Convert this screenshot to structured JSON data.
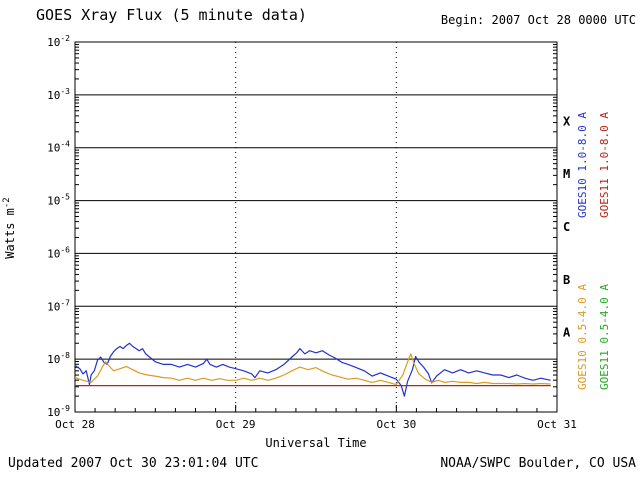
{
  "header": {
    "title": "GOES Xray Flux (5 minute data)",
    "begin": "Begin: 2007 Oct 28 0000 UTC"
  },
  "footer": {
    "updated": "Updated 2007 Oct 30 23:01:04 UTC",
    "source": "NOAA/SWPC Boulder, CO USA"
  },
  "chart_data": {
    "type": "line",
    "title": "GOES Xray Flux (5 minute data)",
    "xlabel": "Universal Time",
    "ylabel": {
      "base": "Watts m",
      "sup": "-2"
    },
    "x_axis": {
      "unit": "days",
      "range": [
        0,
        3
      ]
    },
    "y_axis": {
      "scale": "log10",
      "range_exponents": [
        -9,
        -2
      ]
    },
    "y_ticks": [
      "10^-2",
      "10^-3",
      "10^-4",
      "10^-5",
      "10^-6",
      "10^-7",
      "10^-8",
      "10^-9"
    ],
    "x_ticks": [
      {
        "t": 0,
        "label": "Oct 28"
      },
      {
        "t": 1,
        "label": "Oct 29"
      },
      {
        "t": 2,
        "label": "Oct 30"
      },
      {
        "t": 3,
        "label": "Oct 31"
      }
    ],
    "grid": {
      "horizontal_decades": "solid",
      "vertical_days": "dotted"
    },
    "flare_classes": [
      {
        "label": "X",
        "log_center": -3.5
      },
      {
        "label": "M",
        "log_center": -4.5
      },
      {
        "label": "C",
        "log_center": -5.5
      },
      {
        "label": "B",
        "log_center": -6.5
      },
      {
        "label": "A",
        "log_center": -7.5
      }
    ],
    "series": [
      {
        "name": "GOES10 1.0-8.0 A",
        "color": "#2233cc",
        "points": [
          [
            0.0,
            -8.12
          ],
          [
            0.03,
            -8.18
          ],
          [
            0.05,
            -8.28
          ],
          [
            0.07,
            -8.22
          ],
          [
            0.09,
            -8.48
          ],
          [
            0.1,
            -8.3
          ],
          [
            0.12,
            -8.22
          ],
          [
            0.14,
            -8.02
          ],
          [
            0.16,
            -7.96
          ],
          [
            0.18,
            -8.06
          ],
          [
            0.2,
            -8.1
          ],
          [
            0.22,
            -7.95
          ],
          [
            0.24,
            -7.86
          ],
          [
            0.26,
            -7.8
          ],
          [
            0.28,
            -7.76
          ],
          [
            0.3,
            -7.8
          ],
          [
            0.32,
            -7.74
          ],
          [
            0.34,
            -7.7
          ],
          [
            0.36,
            -7.76
          ],
          [
            0.38,
            -7.8
          ],
          [
            0.4,
            -7.84
          ],
          [
            0.42,
            -7.8
          ],
          [
            0.44,
            -7.9
          ],
          [
            0.46,
            -7.95
          ],
          [
            0.48,
            -8.0
          ],
          [
            0.5,
            -8.05
          ],
          [
            0.55,
            -8.1
          ],
          [
            0.6,
            -8.1
          ],
          [
            0.65,
            -8.15
          ],
          [
            0.7,
            -8.1
          ],
          [
            0.75,
            -8.15
          ],
          [
            0.8,
            -8.08
          ],
          [
            0.82,
            -8.0
          ],
          [
            0.84,
            -8.1
          ],
          [
            0.88,
            -8.15
          ],
          [
            0.92,
            -8.1
          ],
          [
            0.96,
            -8.15
          ],
          [
            1.0,
            -8.18
          ],
          [
            1.05,
            -8.22
          ],
          [
            1.1,
            -8.28
          ],
          [
            1.12,
            -8.35
          ],
          [
            1.15,
            -8.22
          ],
          [
            1.2,
            -8.26
          ],
          [
            1.25,
            -8.2
          ],
          [
            1.3,
            -8.1
          ],
          [
            1.35,
            -7.96
          ],
          [
            1.38,
            -7.88
          ],
          [
            1.4,
            -7.8
          ],
          [
            1.43,
            -7.9
          ],
          [
            1.46,
            -7.84
          ],
          [
            1.5,
            -7.88
          ],
          [
            1.54,
            -7.84
          ],
          [
            1.58,
            -7.92
          ],
          [
            1.62,
            -7.98
          ],
          [
            1.66,
            -8.06
          ],
          [
            1.7,
            -8.1
          ],
          [
            1.75,
            -8.16
          ],
          [
            1.8,
            -8.22
          ],
          [
            1.85,
            -8.32
          ],
          [
            1.9,
            -8.26
          ],
          [
            1.95,
            -8.32
          ],
          [
            2.0,
            -8.38
          ],
          [
            2.03,
            -8.5
          ],
          [
            2.05,
            -8.7
          ],
          [
            2.07,
            -8.42
          ],
          [
            2.1,
            -8.2
          ],
          [
            2.12,
            -7.95
          ],
          [
            2.14,
            -8.05
          ],
          [
            2.17,
            -8.15
          ],
          [
            2.2,
            -8.28
          ],
          [
            2.22,
            -8.45
          ],
          [
            2.25,
            -8.32
          ],
          [
            2.3,
            -8.2
          ],
          [
            2.35,
            -8.26
          ],
          [
            2.4,
            -8.2
          ],
          [
            2.45,
            -8.26
          ],
          [
            2.5,
            -8.22
          ],
          [
            2.55,
            -8.26
          ],
          [
            2.6,
            -8.3
          ],
          [
            2.65,
            -8.3
          ],
          [
            2.7,
            -8.35
          ],
          [
            2.75,
            -8.3
          ],
          [
            2.8,
            -8.36
          ],
          [
            2.85,
            -8.4
          ],
          [
            2.9,
            -8.36
          ],
          [
            2.96,
            -8.4
          ]
        ]
      },
      {
        "name": "GOES11 1.0-8.0 A",
        "color": "#bb2211",
        "points": [
          [
            0.0,
            -8.5
          ],
          [
            2.96,
            -8.5
          ]
        ]
      },
      {
        "name": "GOES10 0.5-4.0 A",
        "color": "#dd9922",
        "points": [
          [
            0.0,
            -8.35
          ],
          [
            0.05,
            -8.4
          ],
          [
            0.1,
            -8.44
          ],
          [
            0.14,
            -8.32
          ],
          [
            0.17,
            -8.15
          ],
          [
            0.19,
            -8.05
          ],
          [
            0.21,
            -8.12
          ],
          [
            0.24,
            -8.22
          ],
          [
            0.28,
            -8.18
          ],
          [
            0.32,
            -8.14
          ],
          [
            0.36,
            -8.2
          ],
          [
            0.4,
            -8.26
          ],
          [
            0.45,
            -8.3
          ],
          [
            0.5,
            -8.32
          ],
          [
            0.55,
            -8.35
          ],
          [
            0.6,
            -8.36
          ],
          [
            0.65,
            -8.4
          ],
          [
            0.7,
            -8.36
          ],
          [
            0.75,
            -8.4
          ],
          [
            0.8,
            -8.36
          ],
          [
            0.85,
            -8.4
          ],
          [
            0.9,
            -8.37
          ],
          [
            0.95,
            -8.4
          ],
          [
            1.0,
            -8.4
          ],
          [
            1.05,
            -8.36
          ],
          [
            1.1,
            -8.4
          ],
          [
            1.15,
            -8.36
          ],
          [
            1.2,
            -8.4
          ],
          [
            1.25,
            -8.36
          ],
          [
            1.3,
            -8.3
          ],
          [
            1.35,
            -8.22
          ],
          [
            1.4,
            -8.15
          ],
          [
            1.45,
            -8.2
          ],
          [
            1.5,
            -8.16
          ],
          [
            1.55,
            -8.24
          ],
          [
            1.6,
            -8.3
          ],
          [
            1.65,
            -8.34
          ],
          [
            1.7,
            -8.38
          ],
          [
            1.75,
            -8.36
          ],
          [
            1.8,
            -8.4
          ],
          [
            1.85,
            -8.44
          ],
          [
            1.9,
            -8.4
          ],
          [
            1.95,
            -8.44
          ],
          [
            2.0,
            -8.48
          ],
          [
            2.04,
            -8.3
          ],
          [
            2.07,
            -8.05
          ],
          [
            2.09,
            -7.9
          ],
          [
            2.11,
            -8.08
          ],
          [
            2.14,
            -8.28
          ],
          [
            2.18,
            -8.38
          ],
          [
            2.22,
            -8.44
          ],
          [
            2.26,
            -8.4
          ],
          [
            2.3,
            -8.44
          ],
          [
            2.35,
            -8.42
          ],
          [
            2.4,
            -8.44
          ],
          [
            2.45,
            -8.44
          ],
          [
            2.5,
            -8.46
          ],
          [
            2.55,
            -8.44
          ],
          [
            2.6,
            -8.46
          ],
          [
            2.65,
            -8.46
          ],
          [
            2.7,
            -8.46
          ],
          [
            2.75,
            -8.47
          ],
          [
            2.8,
            -8.46
          ],
          [
            2.85,
            -8.47
          ],
          [
            2.9,
            -8.46
          ],
          [
            2.96,
            -8.47
          ]
        ]
      },
      {
        "name": "GOES11 0.5-4.0 A",
        "color": "#22aa22",
        "points": []
      }
    ],
    "legend": [
      {
        "label": "GOES10 1.0-8.0 A",
        "color": "#2233cc"
      },
      {
        "label": "GOES11 1.0-8.0 A",
        "color": "#bb2211"
      },
      {
        "label": "GOES10 0.5-4.0 A",
        "color": "#dd9922"
      },
      {
        "label": "GOES11 0.5-4.0 A",
        "color": "#22aa22"
      }
    ]
  }
}
